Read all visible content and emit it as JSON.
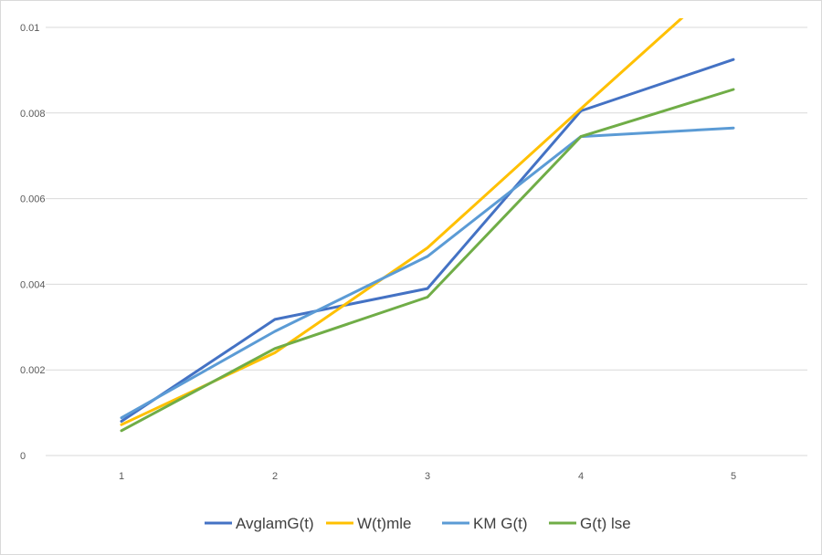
{
  "chart_data": {
    "type": "line",
    "title": "",
    "xlabel": "",
    "ylabel": "",
    "categories": [
      "1",
      "2",
      "3",
      "4",
      "5"
    ],
    "ylim": [
      0,
      0.01
    ],
    "y_ticks": [
      "0",
      "0.002",
      "0.004",
      "0.006",
      "0.008",
      "0.01"
    ],
    "y_tick_values": [
      0,
      0.002,
      0.004,
      0.006,
      0.008,
      0.01
    ],
    "grid": true,
    "legend_position": "bottom",
    "series": [
      {
        "name": "AvglamG(t)",
        "color": "#4472C4",
        "values": [
          0.0008,
          0.00318,
          0.0039,
          0.00805,
          0.00925
        ]
      },
      {
        "name": "W(t)mle",
        "color": "#FFC000",
        "values": [
          0.00072,
          0.0024,
          0.00485,
          0.0081,
          0.0113
        ]
      },
      {
        "name": "KM G(t)",
        "color": "#5B9BD5",
        "values": [
          0.00088,
          0.0029,
          0.00465,
          0.00745,
          0.00765
        ]
      },
      {
        "name": "G(t) lse",
        "color": "#70AD47",
        "values": [
          0.00058,
          0.0025,
          0.0037,
          0.00745,
          0.00855
        ]
      }
    ]
  }
}
